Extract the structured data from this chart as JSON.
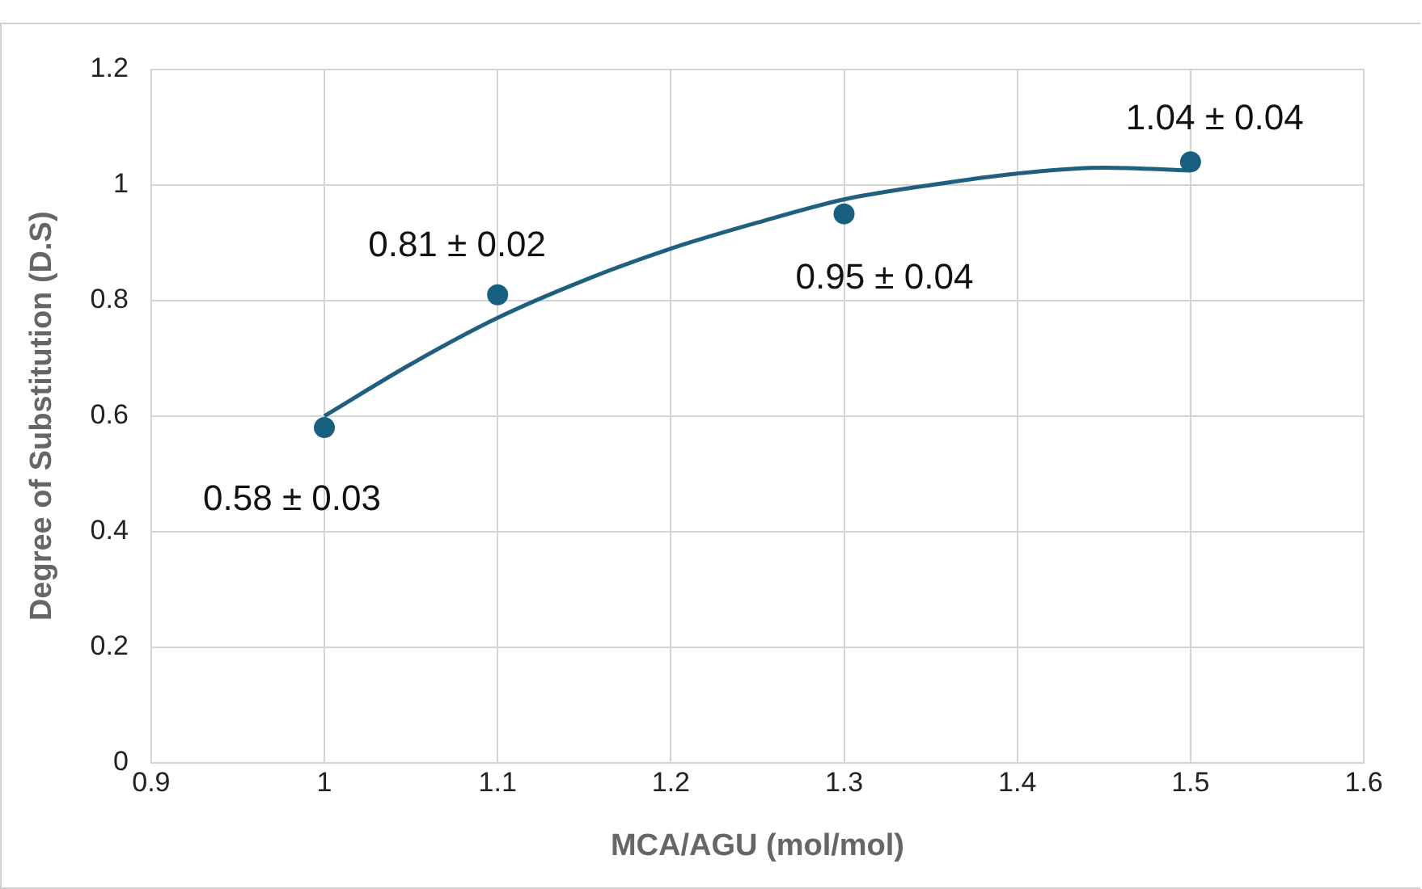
{
  "chart_data": {
    "type": "scatter",
    "xlabel": "MCA/AGU (mol/mol)",
    "ylabel": "Degree of Substitution (D.S)",
    "x": [
      1,
      1.1,
      1.3,
      1.5
    ],
    "series": [
      {
        "color": "#17607f",
        "values": [
          0.58,
          0.81,
          0.95,
          1.04
        ]
      },
      {
        "type": "line",
        "color": "#1f6080",
        "x": [
          1,
          1.05,
          1.1,
          1.15,
          1.2,
          1.25,
          1.3,
          1.35,
          1.4,
          1.45,
          1.5
        ],
        "values": [
          0.6,
          0.69,
          0.77,
          0.835,
          0.89,
          0.935,
          0.975,
          1.0,
          1.02,
          1.03,
          1.025
        ],
        "marker": "none"
      }
    ],
    "xlim": [
      0.9,
      1.6
    ],
    "xticks": [
      0.9,
      1,
      1.1,
      1.2,
      1.3,
      1.4,
      1.5,
      1.6
    ],
    "ylim": [
      0,
      1.2
    ],
    "yticks": [
      0,
      0.2,
      0.4,
      0.6,
      0.8,
      1,
      1.2
    ],
    "grid": true,
    "legend": false,
    "marker": "circle",
    "line_style": "solid",
    "annotations": [
      {
        "text": "0.58 ± 0.03",
        "x": 1,
        "y": 0.58
      },
      {
        "text": "0.81 ± 0.02",
        "x": 1.1,
        "y": 0.81
      },
      {
        "text": "0.95 ± 0.04",
        "x": 1.3,
        "y": 0.95
      },
      {
        "text": "1.04 ± 0.04",
        "x": 1.5,
        "y": 1.04
      }
    ]
  }
}
